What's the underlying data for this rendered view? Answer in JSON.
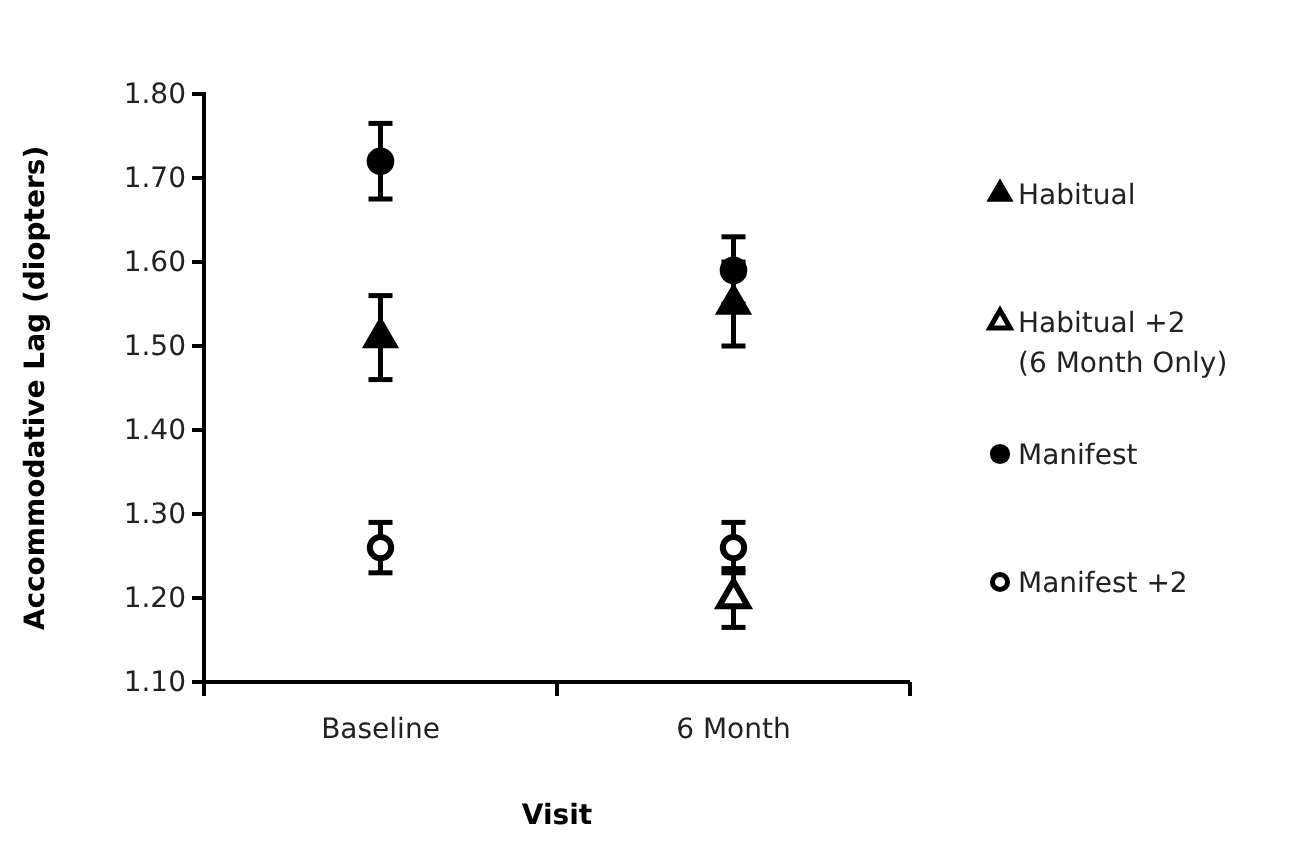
{
  "chart_data": {
    "type": "scatter",
    "xlabel": "Visit",
    "ylabel": "Accommodative Lag (diopters)",
    "categories": [
      "Baseline",
      "6 Month"
    ],
    "ylim": [
      1.1,
      1.8
    ],
    "yticks": [
      {
        "value": 1.1,
        "label": "1.10"
      },
      {
        "value": 1.2,
        "label": "1.20"
      },
      {
        "value": 1.3,
        "label": "1.30"
      },
      {
        "value": 1.4,
        "label": "1.40"
      },
      {
        "value": 1.5,
        "label": "1.50"
      },
      {
        "value": 1.6,
        "label": "1.60"
      },
      {
        "value": 1.7,
        "label": "1.70"
      },
      {
        "value": 1.8,
        "label": "1.80"
      }
    ],
    "grid": false,
    "legend": "right",
    "series": [
      {
        "name": "Habitual",
        "color": "#000000",
        "marker": "triangle",
        "values": [
          1.51,
          1.55
        ],
        "errors": [
          0.05,
          0.05
        ]
      },
      {
        "name": "Habitual +2 (6 Month Only)",
        "color": "#ffffff",
        "marker": "triangle",
        "values": [
          null,
          1.2
        ],
        "errors": [
          null,
          0.035
        ]
      },
      {
        "name": "Manifest",
        "color": "#000000",
        "marker": "circle",
        "values": [
          1.72,
          1.59
        ],
        "errors": [
          0.045,
          0.04
        ]
      },
      {
        "name": "Manifest +2",
        "color": "#ffffff",
        "marker": "circle",
        "values": [
          1.26,
          1.26
        ],
        "errors": [
          0.03,
          0.03
        ]
      }
    ]
  }
}
